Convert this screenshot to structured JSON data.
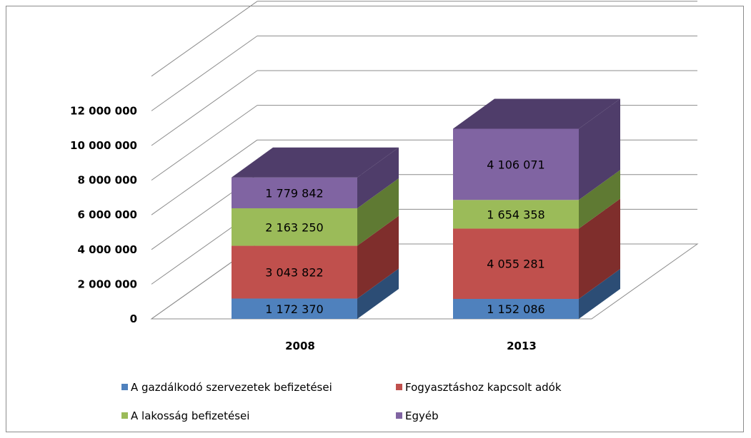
{
  "chart_data": {
    "type": "bar",
    "stacked": true,
    "three_d": true,
    "categories": [
      "2008",
      "2013"
    ],
    "series": [
      {
        "name": "A gazdálkodó szervezetek befizetései",
        "color": "#4f81bd",
        "side_color": "#2c4d75",
        "values": [
          1172370,
          1152086
        ],
        "labels": [
          "1 172 370",
          "1 152 086"
        ]
      },
      {
        "name": "Fogyasztáshoz kapcsolt adók",
        "color": "#c0504d",
        "side_color": "#7f2e2c",
        "values": [
          3043822,
          4055281
        ],
        "labels": [
          "3 043 822",
          "4 055 281"
        ]
      },
      {
        "name": "A lakosság befizetései",
        "color": "#9bbb59",
        "side_color": "#5f7a33",
        "values": [
          2163250,
          1654358
        ],
        "labels": [
          "2 163 250",
          "1 654 358"
        ]
      },
      {
        "name": "Egyéb",
        "color": "#8064a2",
        "side_color": "#4f3d6a",
        "values": [
          1779842,
          4106071
        ],
        "labels": [
          "1 779 842",
          "4 106 071"
        ]
      }
    ],
    "yticks": [
      "0",
      "2 000 000",
      "4 000 000",
      "6 000 000",
      "8 000 000",
      "10 000 000",
      "12 000 000"
    ],
    "ytick_values": [
      0,
      2000000,
      4000000,
      6000000,
      8000000,
      10000000,
      12000000
    ],
    "ylim": [
      0,
      12000000
    ],
    "title": "",
    "xlabel": "",
    "ylabel": "",
    "grid": true,
    "legend_position": "bottom"
  }
}
